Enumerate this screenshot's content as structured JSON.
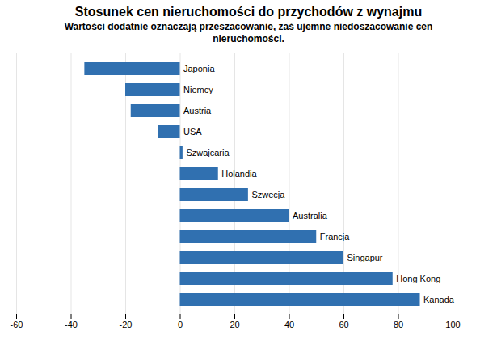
{
  "chart_data": {
    "type": "bar",
    "orientation": "horizontal",
    "title": "Stosunek cen nieruchomości do przychodów z wynajmu",
    "subtitle": "Wartości dodatnie oznaczają przeszacowanie, zaś ujemne niedoszacowanie cen\nnieruchomości.",
    "categories": [
      "Kanada",
      "Hong Kong",
      "Singapur",
      "Francja",
      "Australia",
      "Szwecja",
      "Holandia",
      "Szwajcaria",
      "USA",
      "Austria",
      "Niemcy",
      "Japonia"
    ],
    "values": [
      88,
      78,
      60,
      50,
      40,
      25,
      14,
      1,
      -8,
      -18,
      -20,
      -35
    ],
    "color": "#3070b0",
    "xlim": [
      -60,
      100
    ],
    "xticks": [
      -60,
      -40,
      -20,
      0,
      20,
      40,
      60,
      80,
      100
    ],
    "grid": true,
    "tick_labels": "x"
  }
}
